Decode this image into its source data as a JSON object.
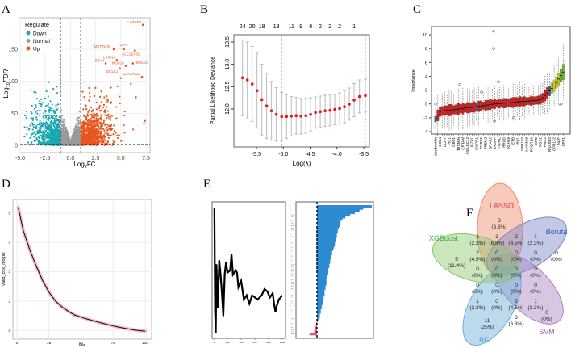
{
  "panels": {
    "A": "A",
    "B": "B",
    "C": "C",
    "D": "D",
    "E": "E",
    "F": "F"
  },
  "colors": {
    "down": "#1aa8b2",
    "normal": "#9a9a9a",
    "up": "#e8541e",
    "lasso_point": "#e41a1c",
    "boruta_reject": "#d21f1f",
    "boruta_shadow": "#3a5fa8",
    "boruta_tent": "#c8c81e",
    "boruta_conf": "#6fbf2a",
    "shap_pos": "#2b8bd2",
    "shap_neg": "#e05a78"
  },
  "chart_data": [
    {
      "panel": "A",
      "type": "scatter",
      "title": "",
      "xlabel": "Log2FC",
      "ylabel": "-Log10FDR",
      "xlim": [
        -5.2,
        8
      ],
      "ylim": [
        0,
        199
      ],
      "xticks": [
        "-5.0",
        "-2.5",
        "0.0",
        "2.5",
        "5.0",
        "7.5"
      ],
      "yticks": [
        "0",
        "50",
        "100",
        "150"
      ],
      "thresholds": {
        "logfc": [
          -1,
          1
        ],
        "fdr_line": 1.3
      },
      "legend": {
        "title": "Regulate",
        "position": "top-left",
        "entries": [
          "Down",
          "Normal",
          "Up"
        ]
      },
      "labeled_genes": [
        {
          "gene": "CABRB2",
          "x": 7.2,
          "y": 188
        },
        {
          "gene": "METTL7B",
          "x": 4.3,
          "y": 150
        },
        {
          "gene": "LIPH",
          "x": 5.3,
          "y": 150
        },
        {
          "gene": "SLC22A31",
          "x": 6.4,
          "y": 148
        },
        {
          "gene": "LRRN4",
          "x": 4.6,
          "y": 133
        },
        {
          "gene": "ETV4",
          "x": 3.5,
          "y": 128
        },
        {
          "gene": "HMGA2",
          "x": 6.2,
          "y": 128
        },
        {
          "gene": "MUC16",
          "x": 5.5,
          "y": 124
        },
        {
          "gene": "DCLK1",
          "x": 4.9,
          "y": 120
        },
        {
          "gene": "ZCCHC12",
          "x": 7.1,
          "y": 107
        }
      ]
    },
    {
      "panel": "B",
      "type": "scatter",
      "title": "",
      "xlabel": "Log(λ)",
      "ylabel": "Partial Likelihood Deviance",
      "xlim": [
        -5.85,
        -3.4
      ],
      "ylim": [
        11.3,
        13.65
      ],
      "xticks": [
        "-5.5",
        "-5.0",
        "-4.5",
        "-4.0",
        "-3.5"
      ],
      "yticks": [
        "12.0",
        "12.5",
        "13.0",
        "13.5"
      ],
      "top_counts": [
        "24",
        "20",
        "18",
        "13",
        "11",
        "9",
        "8",
        "2",
        "2",
        "2",
        "1"
      ],
      "vlines": [
        -5.03,
        -3.47
      ],
      "x": [
        -5.76,
        -5.67,
        -5.58,
        -5.49,
        -5.4,
        -5.31,
        -5.22,
        -5.13,
        -5.03,
        -4.94,
        -4.85,
        -4.76,
        -4.67,
        -4.58,
        -4.49,
        -4.4,
        -4.31,
        -4.22,
        -4.13,
        -4.04,
        -3.95,
        -3.86,
        -3.77,
        -3.68,
        -3.58,
        -3.47
      ],
      "y": [
        12.7,
        12.65,
        12.56,
        12.41,
        12.21,
        12.07,
        11.96,
        11.88,
        11.83,
        11.83,
        11.84,
        11.85,
        11.84,
        11.85,
        11.88,
        11.92,
        11.94,
        11.96,
        11.97,
        11.99,
        12.01,
        12.05,
        12.11,
        12.2,
        12.28,
        12.3
      ],
      "upper": [
        13.55,
        13.5,
        13.4,
        13.25,
        13.0,
        12.8,
        12.62,
        12.48,
        12.37,
        12.32,
        12.28,
        12.26,
        12.24,
        12.24,
        12.25,
        12.27,
        12.29,
        12.31,
        12.32,
        12.33,
        12.36,
        12.41,
        12.47,
        12.57,
        12.65,
        12.67
      ]
    },
    {
      "panel": "C",
      "type": "box",
      "title": "",
      "xlabel": "",
      "ylabel": "Importance",
      "ylim": [
        -4.3,
        11
      ],
      "yticks": [
        "-4",
        "-2",
        "0",
        "2",
        "4",
        "6",
        "8",
        "10"
      ],
      "categories": [
        "shadowMin",
        "COL4",
        "CCR7",
        "PID1",
        "GBP1",
        "TESMIN",
        "CRTAM",
        "SIGLEC12",
        "IKZF1",
        "KISPR1",
        "FRBP5",
        "TREM2",
        "GRAP2",
        "TAGAP",
        "PTPRC",
        "RRAD",
        "KLHL6",
        "ETB",
        "IRF1",
        "GPR183",
        "MAP3K8",
        "FCGR2A",
        "CPD",
        "RGS2",
        "FMO2",
        "RNASE2",
        "GPR132",
        "NUP",
        "SPP1"
      ],
      "medians": [
        -2.2,
        -1.1,
        -0.95,
        -0.9,
        -0.85,
        -0.75,
        -0.65,
        -0.55,
        -0.5,
        -0.4,
        -0.3,
        -0.2,
        -0.1,
        0,
        0.05,
        0.1,
        0.15,
        0.2,
        0.3,
        0.35,
        0.4,
        0.45,
        0.5,
        0.6,
        1.2,
        1.9,
        2.6,
        3.6,
        4.6
      ],
      "groups": [
        "shadow",
        "rejected",
        "rejected",
        "rejected",
        "rejected",
        "rejected",
        "rejected",
        "rejected",
        "rejected",
        "shadow",
        "rejected",
        "rejected",
        "rejected",
        "rejected",
        "rejected",
        "rejected",
        "rejected",
        "rejected",
        "rejected",
        "rejected",
        "rejected",
        "rejected",
        "rejected",
        "rejected",
        "rejected",
        "shadow",
        "tentative",
        "tentative",
        "confirmed"
      ]
    },
    {
      "panel": "D",
      "type": "line",
      "title": "",
      "xlabel": "iter",
      "ylabel": "valid_cox_nloglik",
      "xlim": [
        -3,
        103
      ],
      "ylim": [
        0.85,
        5.35
      ],
      "xticks": [
        "0",
        "25",
        "50",
        "75",
        "100"
      ],
      "yticks": [
        "1",
        "2",
        "3",
        "4",
        "5"
      ],
      "x": [
        1,
        5,
        10,
        15,
        20,
        25,
        30,
        35,
        40,
        45,
        50,
        55,
        60,
        65,
        70,
        75,
        80,
        85,
        90,
        95,
        100
      ],
      "y": [
        5.2,
        4.4,
        3.75,
        3.2,
        2.7,
        2.3,
        2.0,
        1.8,
        1.65,
        1.52,
        1.45,
        1.38,
        1.32,
        1.26,
        1.2,
        1.15,
        1.1,
        1.06,
        1.02,
        0.99,
        0.97
      ]
    },
    {
      "panel": "E-left",
      "type": "line",
      "title": "",
      "xlim": [
        -20,
        1030
      ],
      "ylim": [
        0.8,
        7.3
      ],
      "xticks": [
        "0",
        "200",
        "400",
        "600",
        "800",
        "1000"
      ],
      "x": [
        10,
        20,
        30,
        40,
        60,
        80,
        100,
        120,
        140,
        160,
        180,
        200,
        240,
        260,
        280,
        320,
        340,
        360,
        400,
        440,
        480,
        520,
        560,
        600,
        640,
        700,
        740,
        780,
        820,
        860,
        880,
        900,
        920,
        950,
        1000
      ],
      "y": [
        7.0,
        2.0,
        1.0,
        4.3,
        2.2,
        4.5,
        3.8,
        2.9,
        1.8,
        3.8,
        4.4,
        3.9,
        4.0,
        4.8,
        3.8,
        4.0,
        3.9,
        3.2,
        3.5,
        2.6,
        2.8,
        2.4,
        2.8,
        2.7,
        2.6,
        2.8,
        3.1,
        3.0,
        2.7,
        2.9,
        2.4,
        2.0,
        2.3,
        2.6,
        2.8
      ]
    },
    {
      "panel": "E-right",
      "type": "bar",
      "orientation": "horizontal",
      "title": "",
      "xlim": [
        -0.1,
        0.62
      ],
      "reference_line": 0,
      "values": [
        0.58,
        0.49,
        0.45,
        0.4,
        0.35,
        0.3,
        0.27,
        0.25,
        0.24,
        0.24,
        0.23,
        0.22,
        0.22,
        0.21,
        0.21,
        0.2,
        0.2,
        0.19,
        0.19,
        0.18,
        0.17,
        0.16,
        0.16,
        0.15,
        0.15,
        0.14,
        0.14,
        0.13,
        0.13,
        0.12,
        0.12,
        0.12,
        0.11,
        0.11,
        0.1,
        0.1,
        0.1,
        0.09,
        0.09,
        0.08,
        0.08,
        0.08,
        0.07,
        0.07,
        0.06,
        0.06,
        0.05,
        0.05,
        0.04,
        0.04,
        0.03,
        0.03,
        0.02,
        0.01,
        -0.01,
        -0.01,
        -0.02,
        -0.02,
        -0.03,
        -0.08
      ]
    },
    {
      "panel": "F",
      "type": "venn",
      "sets": [
        "LASSO",
        "Boruta",
        "SVM",
        "RF",
        "XGBoost"
      ],
      "regions": [
        "3 (6.8%)",
        "0 (0%)",
        "0 (0%)",
        "11 (25%)",
        "5 (11.4%)",
        "1 (2.3%)",
        "3 (6.8%)",
        "2 (4.5%)",
        "1 (2.3%)",
        "2 (4.5%)",
        "0 (0%)",
        "0 (0%)",
        "0 (0%)",
        "0 (0%)",
        "0 (0%)",
        "0 (0%)",
        "0 (0%)",
        "0 (0%)",
        "0 (0%)",
        "0 (0%)",
        "0 (0%)",
        "1 (2.3%)",
        "0 (0%)",
        "2 (4.5%)",
        "1 (2.3%)",
        "3 (6.8%)"
      ]
    }
  ]
}
